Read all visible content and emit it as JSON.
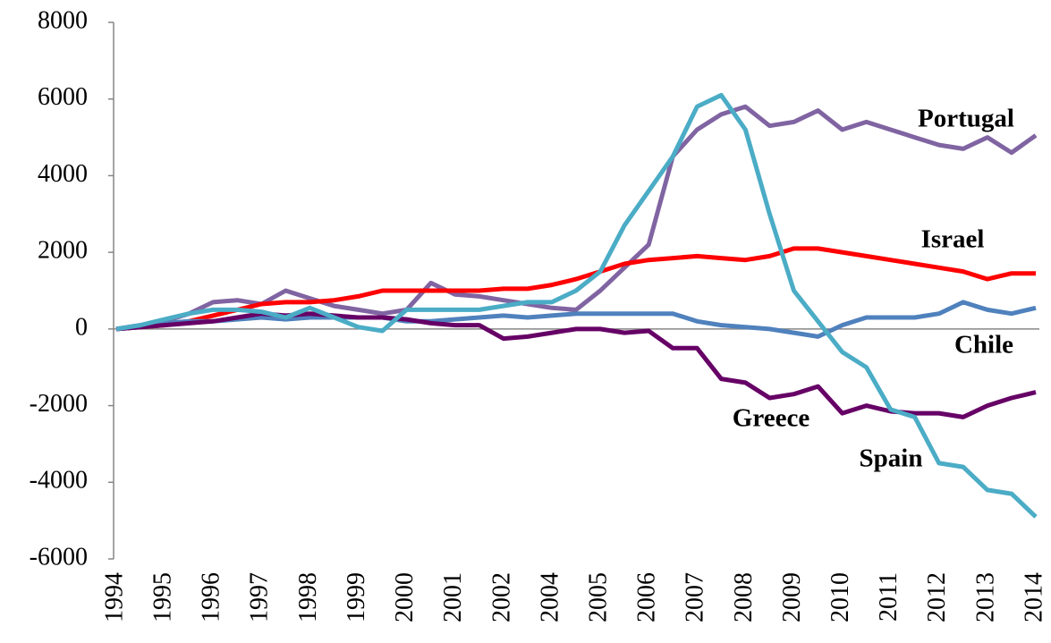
{
  "chart_data": {
    "type": "line",
    "categories": [
      "1994",
      null,
      "1995",
      null,
      "1996",
      null,
      "1997",
      null,
      "1998",
      null,
      "1999",
      null,
      "2000",
      null,
      "2001",
      null,
      "2002",
      null,
      "2004",
      null,
      "2005",
      null,
      "2006",
      null,
      "2007",
      null,
      "2008",
      null,
      "2009",
      null,
      "2010",
      null,
      "2011",
      null,
      "2012",
      null,
      "2013",
      null,
      "2014"
    ],
    "ylim": [
      -6000,
      8000
    ],
    "yticks": [
      -6000,
      -4000,
      -2000,
      0,
      2000,
      4000,
      6000,
      8000
    ],
    "series": [
      {
        "name": "Portugal",
        "color": "#8064a2",
        "values": [
          0,
          100,
          200,
          400,
          700,
          750,
          650,
          1000,
          800,
          600,
          500,
          400,
          500,
          1200,
          900,
          850,
          750,
          650,
          550,
          500,
          1000,
          1600,
          2200,
          4500,
          5200,
          5600,
          5800,
          5300,
          5400,
          5700,
          5200,
          5400,
          5200,
          5000,
          4800,
          4700,
          5000,
          4600,
          5050
        ]
      },
      {
        "name": "Israel",
        "color": "#ff0000",
        "values": [
          0,
          50,
          100,
          200,
          350,
          500,
          650,
          700,
          700,
          750,
          850,
          1000,
          1000,
          1000,
          1000,
          1000,
          1050,
          1050,
          1150,
          1300,
          1500,
          1700,
          1800,
          1850,
          1900,
          1850,
          1800,
          1900,
          2100,
          2100,
          2000,
          1900,
          1800,
          1700,
          1600,
          1500,
          1300,
          1450,
          1450
        ]
      },
      {
        "name": "Chile",
        "color": "#4f81bd",
        "values": [
          0,
          50,
          150,
          200,
          200,
          250,
          300,
          250,
          300,
          300,
          300,
          300,
          200,
          200,
          250,
          300,
          350,
          300,
          350,
          400,
          400,
          400,
          400,
          400,
          200,
          100,
          50,
          0,
          -100,
          -200,
          100,
          300,
          300,
          300,
          400,
          700,
          500,
          400,
          550
        ]
      },
      {
        "name": "Greece",
        "color": "#660066",
        "values": [
          0,
          50,
          100,
          150,
          200,
          300,
          400,
          350,
          400,
          350,
          300,
          300,
          250,
          150,
          100,
          100,
          -250,
          -200,
          -100,
          0,
          0,
          -100,
          -50,
          -500,
          -500,
          -1300,
          -1400,
          -1800,
          -1700,
          -1500,
          -2200,
          -2000,
          -2150,
          -2200,
          -2200,
          -2300,
          -2000,
          -1800,
          -1650
        ]
      },
      {
        "name": "Spain",
        "color": "#4bacc6",
        "values": [
          0,
          100,
          250,
          400,
          500,
          500,
          450,
          300,
          550,
          300,
          50,
          -50,
          500,
          500,
          500,
          500,
          600,
          700,
          700,
          1000,
          1500,
          2700,
          3600,
          4500,
          5800,
          6100,
          5200,
          3000,
          1000,
          200,
          -600,
          -1000,
          -2100,
          -2300,
          -3500,
          -3600,
          -4200,
          -4300,
          -4900
        ]
      }
    ]
  }
}
